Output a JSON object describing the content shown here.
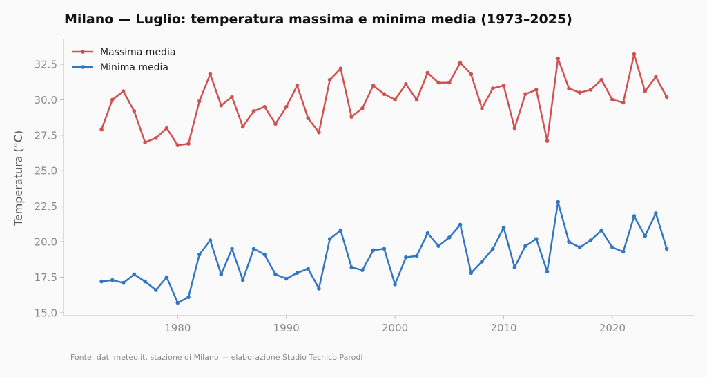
{
  "chart_data": {
    "type": "line",
    "title": "Milano — Luglio: temperatura massima e minima media (1973–2025)",
    "xlabel": "",
    "ylabel": "Temperatura (°C)",
    "xlim": [
      1969.5,
      2027.5
    ],
    "ylim": [
      14.8,
      34.3
    ],
    "x_ticks": [
      1980,
      1990,
      2000,
      2010,
      2020
    ],
    "y_ticks": [
      15.0,
      17.5,
      20.0,
      22.5,
      25.0,
      27.5,
      30.0,
      32.5
    ],
    "grid": false,
    "legend_position": "top-left",
    "x": [
      1973,
      1974,
      1975,
      1976,
      1977,
      1978,
      1979,
      1980,
      1981,
      1982,
      1983,
      1984,
      1985,
      1986,
      1987,
      1988,
      1989,
      1990,
      1991,
      1992,
      1993,
      1994,
      1995,
      1996,
      1997,
      1998,
      1999,
      2000,
      2001,
      2002,
      2003,
      2004,
      2005,
      2006,
      2007,
      2008,
      2009,
      2010,
      2011,
      2012,
      2013,
      2014,
      2015,
      2016,
      2017,
      2018,
      2019,
      2020,
      2021,
      2022,
      2023,
      2024,
      2025
    ],
    "series": [
      {
        "name": "Massima media",
        "color": "#d05151",
        "values": [
          27.9,
          30.0,
          30.6,
          29.2,
          27.0,
          27.3,
          28.0,
          26.8,
          26.9,
          29.9,
          31.8,
          29.6,
          30.2,
          28.1,
          29.2,
          29.5,
          28.3,
          29.5,
          31.0,
          28.7,
          27.7,
          31.4,
          32.2,
          28.8,
          29.4,
          31.0,
          30.4,
          30.0,
          31.1,
          30.0,
          31.9,
          31.2,
          31.2,
          32.6,
          31.8,
          29.4,
          30.8,
          31.0,
          28.0,
          30.4,
          30.7,
          27.1,
          32.9,
          30.8,
          30.5,
          30.7,
          31.4,
          30.0,
          29.8,
          33.2,
          30.6,
          31.6,
          30.2
        ]
      },
      {
        "name": "Minima media",
        "color": "#3276c3",
        "values": [
          17.2,
          17.3,
          17.1,
          17.7,
          17.2,
          16.6,
          17.5,
          15.7,
          16.1,
          19.1,
          20.1,
          17.7,
          19.5,
          17.3,
          19.5,
          19.1,
          17.7,
          17.4,
          17.8,
          18.1,
          16.7,
          20.2,
          20.8,
          18.2,
          18.0,
          19.4,
          19.5,
          17.0,
          18.9,
          19.0,
          20.6,
          19.7,
          20.3,
          21.2,
          17.8,
          18.6,
          19.5,
          21.0,
          18.2,
          19.7,
          20.2,
          17.9,
          22.8,
          20.0,
          19.6,
          20.1,
          20.8,
          19.6,
          19.3,
          21.8,
          20.4,
          22.0,
          19.5
        ]
      }
    ]
  },
  "source_note": "Fonte: dati meteo.it, stazione di Milano — elaborazione Studio Tecnico Parodi"
}
